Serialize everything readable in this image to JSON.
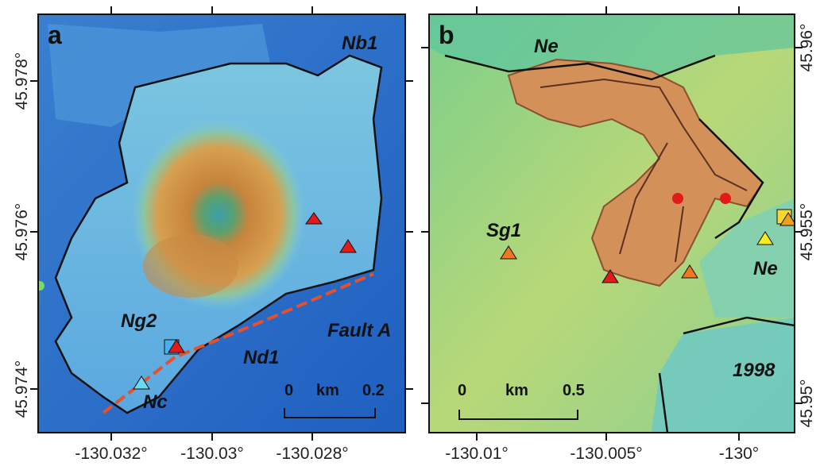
{
  "panels": [
    {
      "label": "a",
      "annotations": [
        "Nb1",
        "Ng2",
        "Nd1",
        "Nc",
        "Fault A"
      ],
      "scale_bar": {
        "start": "0",
        "unit": "km",
        "end": "0.2"
      },
      "y_axis_labels": [
        "45.978°",
        "45.976°",
        "45.974°"
      ],
      "x_axis_labels": [
        "-130.032°",
        "-130.03°",
        "-130.028°"
      ]
    },
    {
      "label": "b",
      "annotations": [
        "Ne",
        "Sg1",
        "Ne",
        "1998"
      ],
      "scale_bar": {
        "start": "0",
        "unit": "km",
        "end": "0.5"
      },
      "y_axis_labels": [
        "45.96°",
        "45.955°",
        "45.95°"
      ],
      "x_axis_labels": [
        "-130.01°",
        "-130.005°",
        "-130°"
      ]
    }
  ]
}
